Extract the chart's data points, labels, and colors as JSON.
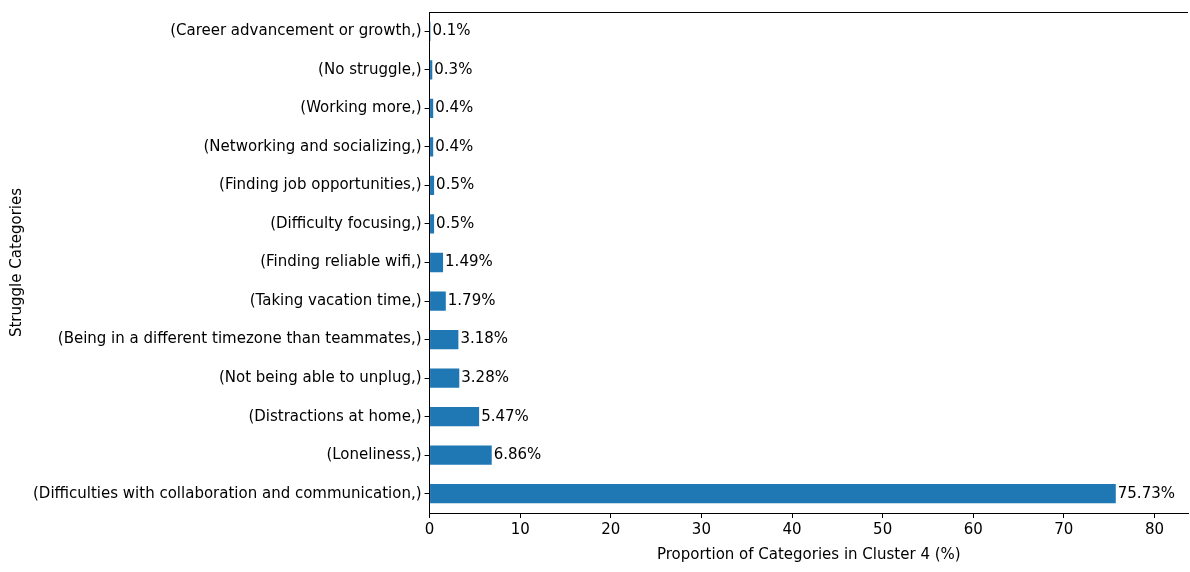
{
  "chart_data": {
    "type": "bar",
    "orientation": "horizontal",
    "xlabel": "Proportion of Categories in Cluster 4 (%)",
    "ylabel": "Struggle Categories",
    "categories": [
      "(Career advancement or growth,)",
      "(No struggle,)",
      "(Working more,)",
      "(Networking and socializing,)",
      "(Finding job opportunities,)",
      "(Difficulty focusing,)",
      "(Finding reliable wifi,)",
      "(Taking vacation time,)",
      "(Being in a different timezone than teammates,)",
      "(Not being able to unplug,)",
      "(Distractions at home,)",
      "(Loneliness,)",
      "(Difficulties with collaboration and communication,)"
    ],
    "values": [
      0.1,
      0.3,
      0.4,
      0.4,
      0.5,
      0.5,
      1.49,
      1.79,
      3.18,
      3.28,
      5.47,
      6.86,
      75.73
    ],
    "value_labels": [
      "0.1%",
      "0.3%",
      "0.4%",
      "0.4%",
      "0.5%",
      "0.5%",
      "1.49%",
      "1.79%",
      "3.18%",
      "3.28%",
      "5.47%",
      "6.86%",
      "75.73%"
    ],
    "color": "#1f77b4",
    "xlim": [
      0,
      83.7
    ],
    "xticks": [
      0,
      10,
      20,
      30,
      40,
      50,
      60,
      70,
      80
    ],
    "grid": false,
    "legend": false
  }
}
